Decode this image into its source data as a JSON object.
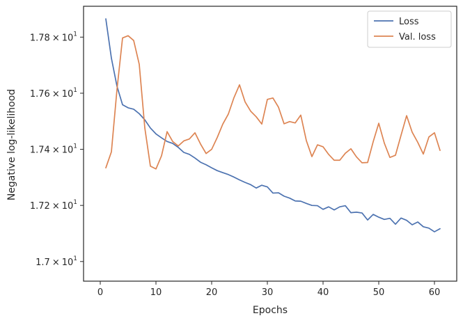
{
  "chart_data": {
    "type": "line",
    "xlabel": "Epochs",
    "ylabel": "Negative log-likelihood",
    "xlim": [
      -3,
      64
    ],
    "ylim": [
      16.93,
      17.91
    ],
    "x_ticks": [
      {
        "value": 0,
        "label": "0"
      },
      {
        "value": 10,
        "label": "10"
      },
      {
        "value": 20,
        "label": "20"
      },
      {
        "value": 30,
        "label": "30"
      },
      {
        "value": 40,
        "label": "40"
      },
      {
        "value": 50,
        "label": "50"
      },
      {
        "value": 60,
        "label": "60"
      }
    ],
    "y_ticks": [
      {
        "value": 17.0,
        "mantissa": "1.7",
        "sup": "1"
      },
      {
        "value": 17.2,
        "mantissa": "1.72",
        "sup": "1"
      },
      {
        "value": 17.4,
        "mantissa": "1.74",
        "sup": "1"
      },
      {
        "value": 17.6,
        "mantissa": "1.76",
        "sup": "1"
      },
      {
        "value": 17.8,
        "mantissa": "1.78",
        "sup": "1"
      }
    ],
    "tick_times": "×",
    "tick_base": "10",
    "grid": false,
    "legend_position": "top-right",
    "x": [
      1,
      2,
      3,
      4,
      5,
      6,
      7,
      8,
      9,
      10,
      11,
      12,
      13,
      14,
      15,
      16,
      17,
      18,
      19,
      20,
      21,
      22,
      23,
      24,
      25,
      26,
      27,
      28,
      29,
      30,
      31,
      32,
      33,
      34,
      35,
      36,
      37,
      38,
      39,
      40,
      41,
      42,
      43,
      44,
      45,
      46,
      47,
      48,
      49,
      50,
      51,
      52,
      53,
      54,
      55,
      56,
      57,
      58,
      59,
      60,
      61
    ],
    "series": [
      {
        "name": "Loss",
        "color": "#4c72b0",
        "values": [
          17.865,
          17.725,
          17.625,
          17.559,
          17.548,
          17.543,
          17.527,
          17.505,
          17.476,
          17.455,
          17.441,
          17.428,
          17.421,
          17.407,
          17.389,
          17.382,
          17.369,
          17.354,
          17.345,
          17.334,
          17.324,
          17.317,
          17.31,
          17.301,
          17.291,
          17.282,
          17.274,
          17.262,
          17.272,
          17.266,
          17.244,
          17.245,
          17.233,
          17.226,
          17.216,
          17.215,
          17.207,
          17.2,
          17.199,
          17.186,
          17.195,
          17.184,
          17.195,
          17.199,
          17.174,
          17.176,
          17.173,
          17.148,
          17.168,
          17.158,
          17.15,
          17.154,
          17.133,
          17.155,
          17.147,
          17.131,
          17.141,
          17.124,
          17.119,
          17.106,
          17.117
        ]
      },
      {
        "name": "Val. loss",
        "color": "#dd8452",
        "values": [
          17.334,
          17.391,
          17.613,
          17.797,
          17.805,
          17.788,
          17.703,
          17.476,
          17.34,
          17.33,
          17.377,
          17.463,
          17.428,
          17.412,
          17.43,
          17.437,
          17.459,
          17.419,
          17.385,
          17.4,
          17.442,
          17.49,
          17.526,
          17.584,
          17.63,
          17.569,
          17.536,
          17.516,
          17.49,
          17.578,
          17.583,
          17.55,
          17.491,
          17.499,
          17.494,
          17.522,
          17.431,
          17.374,
          17.416,
          17.409,
          17.382,
          17.361,
          17.361,
          17.386,
          17.402,
          17.373,
          17.352,
          17.353,
          17.427,
          17.493,
          17.422,
          17.371,
          17.379,
          17.45,
          17.52,
          17.461,
          17.425,
          17.383,
          17.444,
          17.459,
          17.396
        ]
      }
    ]
  }
}
